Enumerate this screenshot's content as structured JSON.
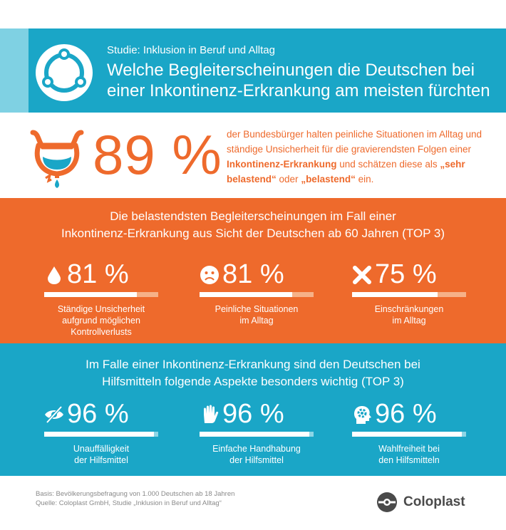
{
  "header": {
    "kicker": "Studie: Inklusion in Beruf und Alltag",
    "title": "Welche Begleiterscheinungen die Deutschen bei einer Inkontinenz-Erkrankung am meisten fürchten",
    "icon": "people-circle-icon"
  },
  "stat": {
    "value": "89 %",
    "icon": "bladder-icon",
    "text_1": "der Bundesbürger halten peinliche Situationen im Alltag und ständige Unsicherheit für die gravierendsten Folgen einer ",
    "text_bold_1": "Inkontinenz-Erkrankung",
    "text_2": " und schätzen diese als ",
    "text_bold_2": "„sehr belastend“",
    "text_3": " oder ",
    "text_bold_3": "„belastend“",
    "text_4": " ein."
  },
  "orange": {
    "title_line1": "Die belastendsten Begleiterscheinungen im Fall einer",
    "title_line2": "Inkontinenz-Erkrankung aus Sicht der Deutschen ab 60 Jahren (TOP 3)",
    "items": [
      {
        "pct": "81 %",
        "fill": 0.81,
        "icon": "drop-icon",
        "line1": "Ständige Unsicherheit",
        "line2": "aufgrund möglichen",
        "line3": "Kontrollverlusts"
      },
      {
        "pct": "81 %",
        "fill": 0.81,
        "icon": "sad-face-icon",
        "line1": "Peinliche Situationen",
        "line2": "im Alltag",
        "line3": ""
      },
      {
        "pct": "75 %",
        "fill": 0.75,
        "icon": "cross-icon",
        "line1": "Einschränkungen",
        "line2": "im Alltag",
        "line3": ""
      }
    ]
  },
  "teal": {
    "title_line1": "Im Falle einer Inkontinenz-Erkrankung sind den Deutschen bei",
    "title_line2": "Hilfsmitteln folgende Aspekte besonders wichtig (TOP 3)",
    "items": [
      {
        "pct": "96 %",
        "fill": 0.96,
        "icon": "eye-slash-icon",
        "line1": "Unauffälligkeit",
        "line2": "der Hilfsmittel"
      },
      {
        "pct": "96 %",
        "fill": 0.96,
        "icon": "hand-icon",
        "line1": "Einfache Handhabung",
        "line2": "der Hilfsmittel"
      },
      {
        "pct": "96 %",
        "fill": 0.96,
        "icon": "head-gear-icon",
        "line1": "Wahlfreiheit bei",
        "line2": "den Hilfsmitteln"
      }
    ]
  },
  "footer": {
    "basis": "Basis: Bevölkerungsbefragung von 1.000 Deutschen ab 18 Jahren",
    "source": "Quelle: Coloplast GmbH, Studie „Inklusion in Beruf und Alltag“",
    "brand": "Coloplast"
  },
  "colors": {
    "teal": "#1aa6c7",
    "orange": "#ee6a2c",
    "light_teal": "#7fd1e3"
  }
}
